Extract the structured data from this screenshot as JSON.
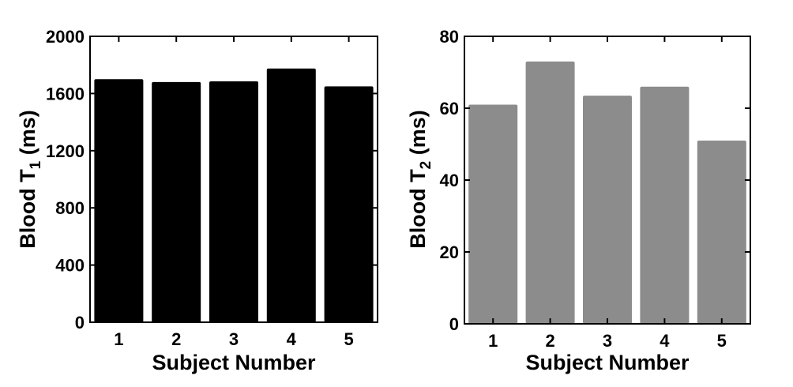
{
  "chart_data": [
    {
      "type": "bar",
      "categories": [
        "1",
        "2",
        "3",
        "4",
        "5"
      ],
      "values": [
        1700,
        1680,
        1685,
        1775,
        1650
      ],
      "xlabel": "Subject Number",
      "ylabel": {
        "text": "Blood T",
        "subscript": "1",
        "suffix": " (ms)"
      },
      "ylim": [
        0,
        2000
      ],
      "yticks": [
        "0",
        "400",
        "800",
        "1200",
        "1600",
        "2000"
      ],
      "bar_color": "#000000",
      "grid": false
    },
    {
      "type": "bar",
      "categories": [
        "1",
        "2",
        "3",
        "4",
        "5"
      ],
      "values": [
        61,
        73,
        63.5,
        66,
        51
      ],
      "xlabel": "Subject Number",
      "ylabel": {
        "text": "Blood T",
        "subscript": "2",
        "suffix": " (ms)"
      },
      "ylim": [
        0,
        80
      ],
      "yticks": [
        "0",
        "20",
        "40",
        "60",
        "80"
      ],
      "bar_color": "#8c8c8c",
      "grid": false
    }
  ]
}
